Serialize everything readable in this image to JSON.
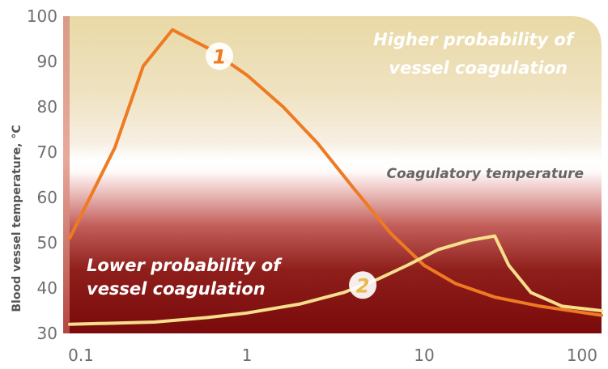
{
  "chart_data": {
    "type": "line",
    "title": "",
    "xlabel": "",
    "ylabel": "Blood vessel temperature, °C",
    "xscale": "log",
    "xlim": [
      0.1,
      100
    ],
    "ylim": [
      30,
      100
    ],
    "x_ticks": [
      "0.1",
      "1",
      "10",
      "100"
    ],
    "y_ticks": [
      "30",
      "40",
      "50",
      "60",
      "70",
      "80",
      "90",
      "100"
    ],
    "series": [
      {
        "name": "1",
        "color": "#ee7a22",
        "x": [
          0.1,
          0.18,
          0.26,
          0.38,
          0.6,
          1.0,
          1.6,
          2.5,
          4.0,
          6.5,
          10,
          15,
          25,
          45,
          100
        ],
        "y": [
          51,
          71,
          89,
          97,
          93,
          87,
          80,
          72,
          62,
          52,
          45,
          41,
          38,
          36,
          34
        ]
      },
      {
        "name": "2",
        "color": "#f6df8c",
        "x": [
          0.1,
          0.3,
          0.6,
          1.0,
          2.0,
          3.5,
          5.5,
          8.0,
          12,
          18,
          25,
          30,
          40,
          60,
          100
        ],
        "y": [
          32,
          32.5,
          33.5,
          34.5,
          36.5,
          39,
          42,
          45,
          48.5,
          50.5,
          51.5,
          45,
          39,
          36,
          35
        ]
      }
    ],
    "annotations": {
      "upper_zone": [
        "Higher probability of",
        "vessel coagulation"
      ],
      "middle_zone": "Coagulatory temperature",
      "lower_zone": [
        "Lower probability of",
        "vessel coagulation"
      ]
    },
    "zone_colors": {
      "top": "#e8d9a4",
      "band": "#ffffff",
      "bottom": "#7e0b0c",
      "edge": "#c86a52"
    },
    "grid": false,
    "legend": "inline numbered markers"
  }
}
